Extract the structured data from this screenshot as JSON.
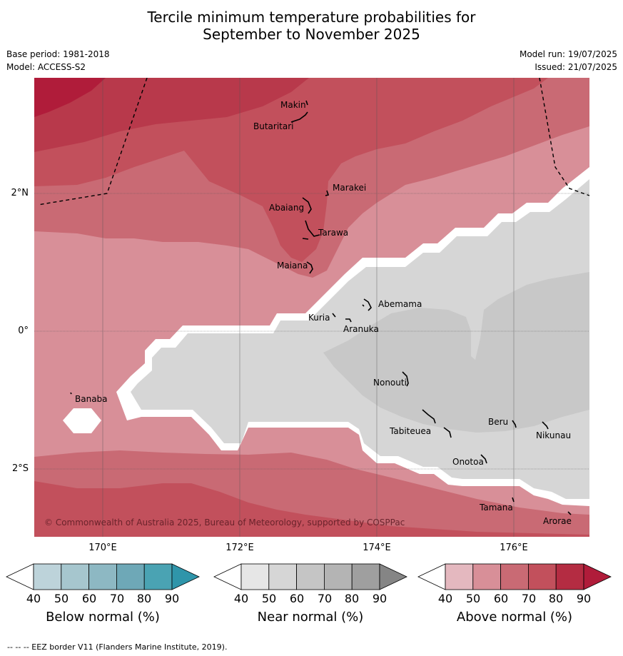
{
  "title_line1": "Tercile minimum temperature probabilities for",
  "title_line2": "September to November 2025",
  "base_period": "Base period: 1981-2018",
  "model": "Model: ACCESS-S2",
  "model_run": "Model run: 19/07/2025",
  "issued": "Issued: 21/07/2025",
  "lat_labels": [
    "2°N",
    "0°",
    "2°S"
  ],
  "lon_labels": [
    "170°E",
    "172°E",
    "174°E",
    "176°E"
  ],
  "islands": [
    "Makin",
    "Butaritari",
    "Marakei",
    "Abaiang",
    "Tarawa",
    "Maiana",
    "Abemama",
    "Kuria",
    "Aranuka",
    "Banaba",
    "Nonouti",
    "Tabiteuea",
    "Beru",
    "Nikunau",
    "Onotoa",
    "Tamana",
    "Arorae"
  ],
  "copyright": "© Commonwealth of Australia 2025, Bureau of Meteorology, supported by COSPPac",
  "legends": [
    {
      "title": "Below normal (%)",
      "ticks": [
        "40",
        "50",
        "60",
        "70",
        "80",
        "90"
      ],
      "colors": [
        "#ffffff",
        "#bdd3da",
        "#a6c6ce",
        "#8db8c3",
        "#6ea8b7",
        "#4aa3b3",
        "#2f95aa"
      ]
    },
    {
      "title": "Near normal (%)",
      "ticks": [
        "40",
        "50",
        "60",
        "70",
        "80",
        "90"
      ],
      "colors": [
        "#ffffff",
        "#e6e6e6",
        "#d6d6d6",
        "#c5c5c5",
        "#b4b4b4",
        "#9f9f9f",
        "#858585"
      ]
    },
    {
      "title": "Above normal (%)",
      "ticks": [
        "40",
        "50",
        "60",
        "70",
        "80",
        "90"
      ],
      "colors": [
        "#ffffff",
        "#e4b8bf",
        "#d88f98",
        "#c96a74",
        "#c2505c",
        "#b42c42",
        "#b01c3a"
      ]
    }
  ],
  "footer": "-- -- -- EEZ border V11 (Flanders Marine Institute, 2019)."
}
